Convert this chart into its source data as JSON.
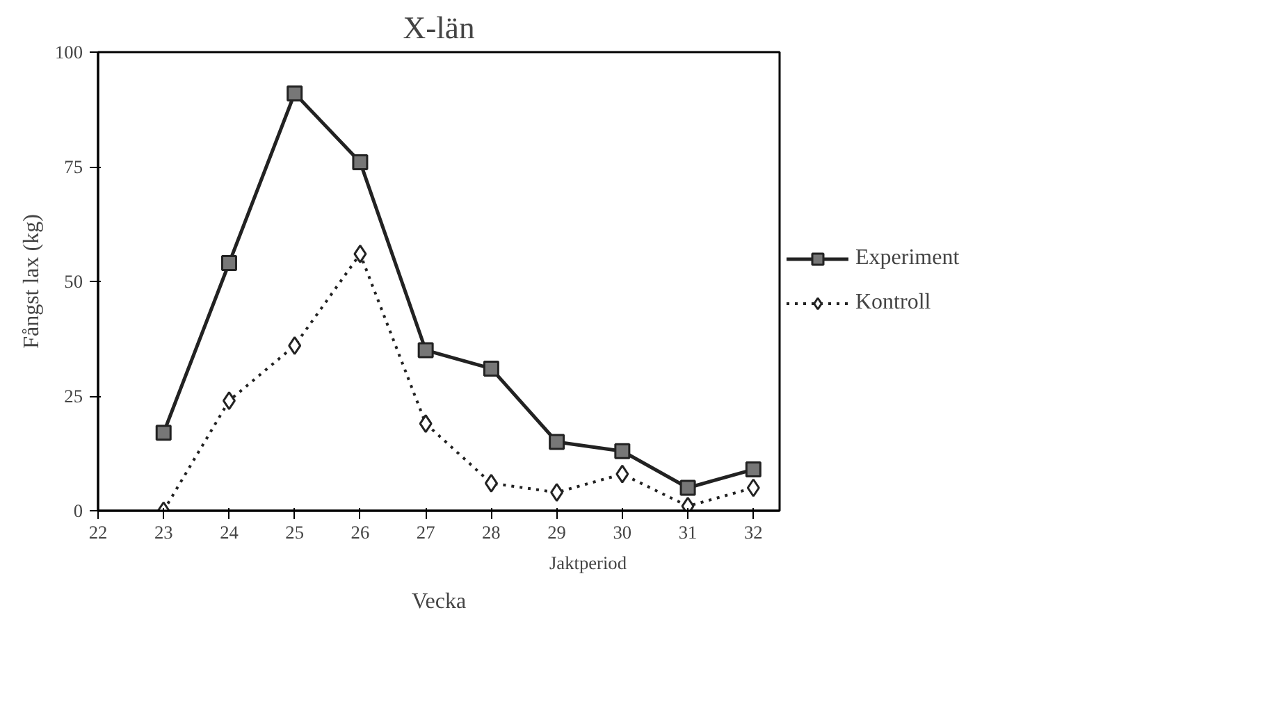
{
  "chart_data": {
    "type": "line",
    "title": "X-län",
    "xlabel": "Vecka",
    "ylabel": "Fångst lax (kg)",
    "x": [
      23,
      24,
      25,
      26,
      27,
      28,
      29,
      30,
      31,
      32
    ],
    "series": [
      {
        "name": "Experiment",
        "color": "#222222",
        "marker": "square",
        "line_style": "solid",
        "values": [
          17,
          54,
          91,
          76,
          35,
          31,
          15,
          13,
          5,
          9
        ]
      },
      {
        "name": "Kontroll",
        "color": "#222222",
        "marker": "diamond",
        "line_style": "dotted",
        "values": [
          0,
          24,
          36,
          56,
          19,
          6,
          4,
          8,
          1,
          5
        ]
      }
    ],
    "xlim": [
      22,
      32.4
    ],
    "xticks": [
      22,
      23,
      24,
      25,
      26,
      27,
      28,
      29,
      30,
      31,
      32
    ],
    "ylim": [
      0,
      100
    ],
    "yticks": [
      0,
      25,
      50,
      75,
      100
    ],
    "annotations": [
      "Jaktperiod"
    ],
    "grid": false,
    "legend": "right"
  }
}
